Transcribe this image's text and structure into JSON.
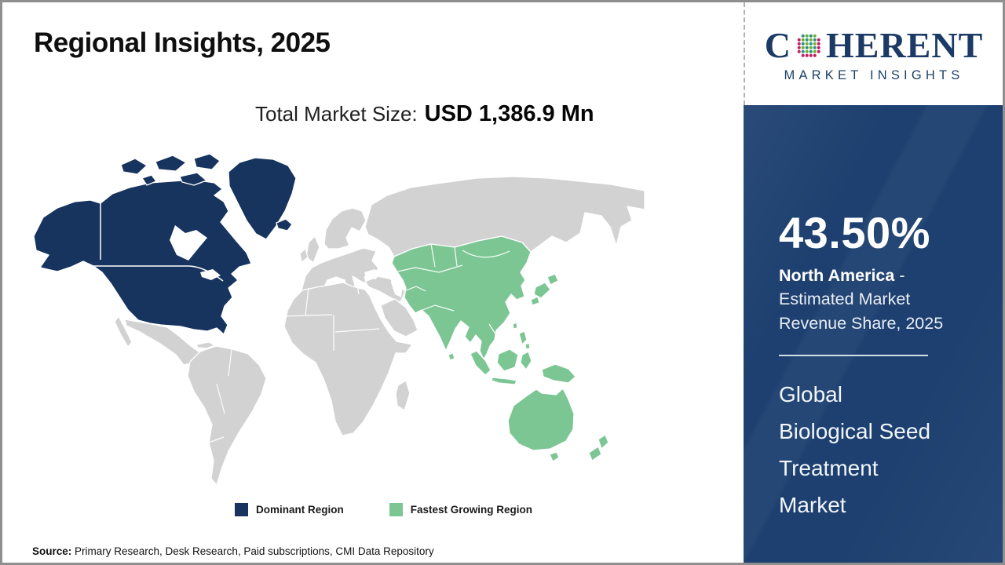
{
  "title": "Regional Insights, 2025",
  "subtitle": {
    "label": "Total Market Size:",
    "value": "USD 1,386.9 Mn"
  },
  "logo": {
    "word_start": "C",
    "word_end": "HERENT",
    "tagline": "MARKET INSIGHTS",
    "globe_colors": {
      "teal": "#2e8f8a",
      "green": "#6ab32e",
      "magenta": "#c22062"
    }
  },
  "sidebar": {
    "share_value": "43.50%",
    "share_region": "North America",
    "share_desc": " - Estimated Market Revenue Share, 2025",
    "market_name": "Global\nBiological Seed\nTreatment\nMarket"
  },
  "legend": [
    {
      "label": "Dominant Region",
      "color": "#17345f"
    },
    {
      "label": "Fastest Growing Region",
      "color": "#7cc694"
    }
  ],
  "map": {
    "colors": {
      "dominant": "#17345f",
      "fastest": "#7cc694",
      "other": "#d2d2d2",
      "ocean": "#ffffff",
      "border": "#ffffff"
    }
  },
  "footer": {
    "label": "Source:",
    "text": " Primary Research, Desk Research, Paid subscriptions, CMI Data Repository"
  }
}
